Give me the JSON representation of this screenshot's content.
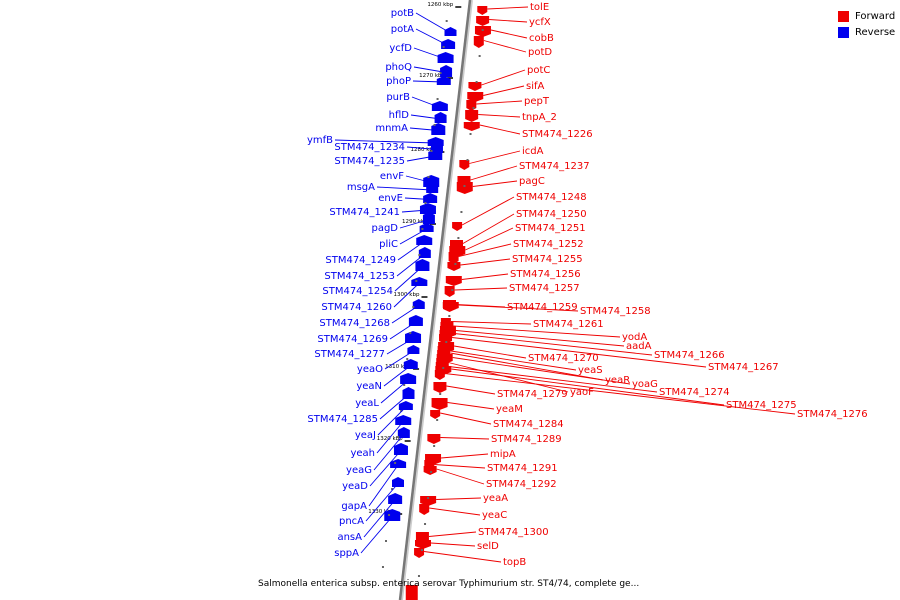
{
  "caption": "Salmonella enterica subsp. enterica serovar Typhimurium str. ST4/74, complete ge...",
  "legend": [
    {
      "label": "Forward",
      "color": "#ee0000"
    },
    {
      "label": "Reverse",
      "color": "#0000ee"
    }
  ],
  "colors": {
    "forward": "#ee0000",
    "reverse": "#0000ee",
    "backbone": "#777777"
  },
  "scale_ticks": [
    "1260 kbp",
    "1270 kbp",
    "1280 kbp",
    "1290 kbp",
    "1300 kbp",
    "1310 kbp",
    "1320 kbp",
    "1330 kbp"
  ],
  "reverse_genes": [
    "potB",
    "potA",
    "ycfD",
    "phoQ",
    "phoP",
    "purB",
    "hflD",
    "mnmA",
    "ymfB",
    "STM474_1234",
    "STM474_1235",
    "envF",
    "msgA",
    "envE",
    "STM474_1241",
    "pagD",
    "pliC",
    "STM474_1249",
    "STM474_1253",
    "STM474_1254",
    "STM474_1260",
    "STM474_1268",
    "STM474_1269",
    "STM474_1277",
    "yeaO",
    "yeaN",
    "yeaL",
    "STM474_1285",
    "yeaJ",
    "yeah",
    "yeaG",
    "yeaD",
    "gapA",
    "pncA",
    "ansA",
    "sppA"
  ],
  "forward_genes": [
    "tolE",
    "ycfX",
    "cobB",
    "potD",
    "potC",
    "sifA",
    "pepT",
    "tnpA_2",
    "STM474_1226",
    "icdA",
    "STM474_1237",
    "pagC",
    "STM474_1248",
    "STM474_1250",
    "STM474_1251",
    "STM474_1252",
    "STM474_1255",
    "STM474_1256",
    "STM474_1257",
    "STM474_1259",
    "STM474_1258",
    "STM474_1261",
    "yodA",
    "aadA",
    "STM474_1266",
    "STM474_1267",
    "STM474_1270",
    "yeaS",
    "yeaR",
    "yoaG",
    "yaoF",
    "STM474_1274",
    "STM474_1275",
    "STM474_1276",
    "STM474_1279",
    "yeaM",
    "STM474_1284",
    "STM474_1289",
    "mipA",
    "STM474_1291",
    "STM474_1292",
    "yeaA",
    "yeaC",
    "STM474_1300",
    "selD",
    "topB"
  ]
}
